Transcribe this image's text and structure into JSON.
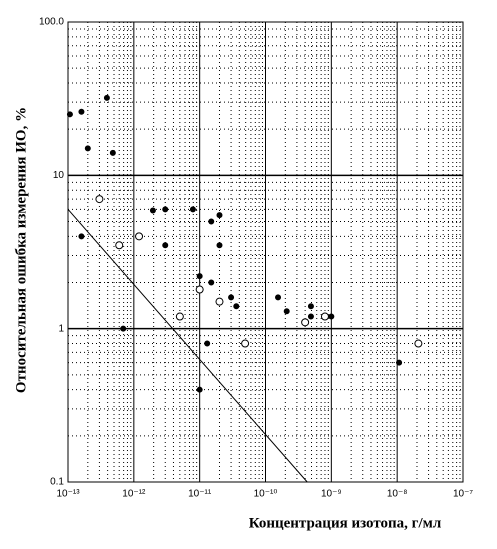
{
  "chart_data": {
    "type": "scatter",
    "xlabel": "Концентрация изотопа, г/мл",
    "ylabel": "Относительная ошибка измерения ИО, %",
    "xscale": "log",
    "yscale": "log",
    "xlim": [
      1e-13,
      1e-07
    ],
    "ylim": [
      0.1,
      100
    ],
    "xticks": [
      {
        "value": 1e-13,
        "label": "10⁻¹³"
      },
      {
        "value": 1e-12,
        "label": "10⁻¹²"
      },
      {
        "value": 1e-11,
        "label": "10⁻¹¹"
      },
      {
        "value": 1e-10,
        "label": "10⁻¹⁰"
      },
      {
        "value": 1e-09,
        "label": "10⁻⁹"
      },
      {
        "value": 1e-08,
        "label": "10⁻⁸"
      },
      {
        "value": 1e-07,
        "label": "10⁻⁷"
      }
    ],
    "yticks": [
      0.1,
      1,
      10,
      {
        "value": 100,
        "label": "100.0"
      }
    ],
    "grid": true,
    "minor_grid": true,
    "series": [
      {
        "type": "scatter",
        "marker": "filled",
        "color": "#000000",
        "x": [
          1.07e-13,
          1.6e-13,
          1.6e-13,
          2e-13,
          3e-13,
          3.9e-13,
          4.8e-13,
          6.9e-13,
          1.95e-12,
          3e-12,
          3e-12,
          7.9e-12,
          1e-11,
          1e-11,
          1.3e-11,
          1.5e-11,
          1.5e-11,
          2e-11,
          2e-11,
          3e-11,
          3.6e-11,
          1.55e-10,
          2.1e-10,
          4.9e-10,
          4.9e-10,
          1e-09,
          1.07e-08
        ],
        "values": [
          25,
          26,
          4,
          15,
          7,
          32,
          14,
          1.0,
          5.9,
          6,
          3.5,
          6,
          2.2,
          0.4,
          0.8,
          2.0,
          5.0,
          5.5,
          3.5,
          1.6,
          1.4,
          1.6,
          1.3,
          1.2,
          1.4,
          1.2,
          0.6
        ]
      },
      {
        "type": "scatter",
        "marker": "open",
        "color": "#000000",
        "x": [
          3e-13,
          6e-13,
          1.2e-12,
          5e-12,
          1e-11,
          2e-11,
          4.9e-11,
          4e-10,
          8e-10,
          2.1e-08
        ],
        "values": [
          7,
          3.5,
          4,
          1.2,
          1.8,
          1.5,
          0.8,
          1.1,
          1.2,
          0.8
        ]
      },
      {
        "type": "line",
        "color": "#000000",
        "x": [
          1e-13,
          4.3e-10
        ],
        "values": [
          6,
          0.1
        ]
      }
    ]
  }
}
